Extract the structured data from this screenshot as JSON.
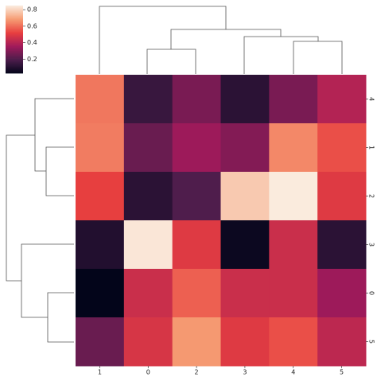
{
  "chart_data": {
    "type": "heatmap",
    "colormap": "rocket",
    "x_categories": [
      "1",
      "0",
      "2",
      "3",
      "4",
      "5"
    ],
    "y_categories": [
      "4",
      "1",
      "2",
      "3",
      "0",
      "5"
    ],
    "values": [
      [
        0.62,
        0.15,
        0.28,
        0.12,
        0.28,
        0.4
      ],
      [
        0.63,
        0.25,
        0.35,
        0.3,
        0.65,
        0.55
      ],
      [
        0.52,
        0.12,
        0.2,
        0.78,
        0.85,
        0.5
      ],
      [
        0.1,
        0.84,
        0.5,
        0.05,
        0.45,
        0.12
      ],
      [
        0.03,
        0.45,
        0.58,
        0.45,
        0.45,
        0.35
      ],
      [
        0.25,
        0.48,
        0.68,
        0.5,
        0.55,
        0.42
      ]
    ],
    "vlim": [
      0.03,
      0.85
    ],
    "colorbar_ticks": [
      0.2,
      0.4,
      0.6,
      0.8
    ]
  }
}
